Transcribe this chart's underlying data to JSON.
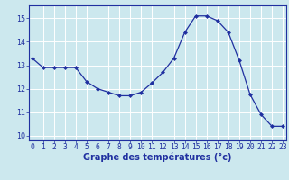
{
  "hours": [
    0,
    1,
    2,
    3,
    4,
    5,
    6,
    7,
    8,
    9,
    10,
    11,
    12,
    13,
    14,
    15,
    16,
    17,
    18,
    19,
    20,
    21,
    22,
    23
  ],
  "temperatures": [
    13.3,
    12.9,
    12.9,
    12.9,
    12.9,
    12.3,
    12.0,
    11.85,
    11.7,
    11.7,
    11.85,
    12.25,
    12.7,
    13.3,
    14.4,
    15.1,
    15.1,
    14.9,
    14.4,
    13.2,
    11.75,
    10.9,
    10.4,
    10.4
  ],
  "xlabel": "Graphe des températures (°c)",
  "ylim": [
    9.8,
    15.55
  ],
  "yticks": [
    10,
    11,
    12,
    13,
    14,
    15
  ],
  "xticks": [
    0,
    1,
    2,
    3,
    4,
    5,
    6,
    7,
    8,
    9,
    10,
    11,
    12,
    13,
    14,
    15,
    16,
    17,
    18,
    19,
    20,
    21,
    22,
    23
  ],
  "line_color": "#2030a0",
  "marker": "D",
  "marker_size": 2.0,
  "bg_color": "#cce8ee",
  "grid_color": "#ffffff",
  "axis_color": "#2030a0",
  "label_color": "#2030a0",
  "tick_label_fontsize": 5.8,
  "xlabel_fontsize": 7.0
}
